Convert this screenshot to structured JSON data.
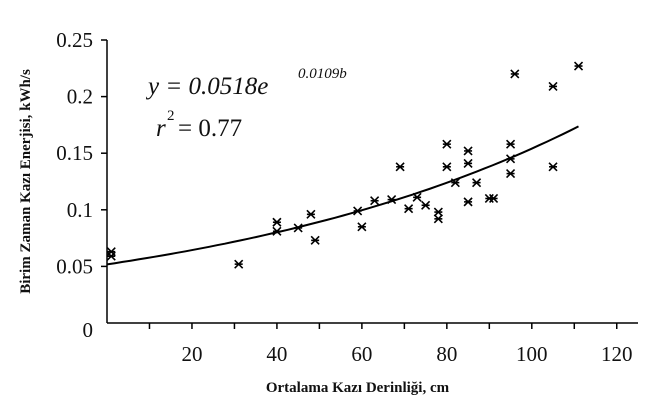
{
  "chart_data": {
    "type": "scatter",
    "title": "",
    "xlabel": "Ortalama Kazı Derinliği, cm",
    "ylabel": "Birim Zaman Kazı Enerjisi, kWh/s",
    "xlim": [
      0,
      125
    ],
    "ylim": [
      0,
      0.25
    ],
    "x_ticks": [
      20,
      40,
      60,
      80,
      100,
      120
    ],
    "x_tick_labels": [
      "20",
      "40",
      "60",
      "80",
      "100",
      "120"
    ],
    "y_ticks": [
      0,
      0.05,
      0.1,
      0.15,
      0.2,
      0.25
    ],
    "y_tick_labels": [
      "0",
      "0.05",
      "0.1",
      "0.15",
      "0.2",
      "0.25"
    ],
    "grid": false,
    "legend": "none",
    "marker": "asterisk",
    "series": [
      {
        "x": [
          1,
          1,
          31,
          40,
          40,
          45,
          48,
          49,
          59,
          60,
          63,
          67,
          69,
          71,
          73,
          75,
          78,
          78,
          80,
          80,
          82,
          85,
          85,
          85,
          87,
          90,
          91,
          95,
          95,
          95,
          96,
          105,
          105,
          111
        ],
        "y": [
          0.063,
          0.059,
          0.052,
          0.089,
          0.081,
          0.084,
          0.096,
          0.073,
          0.099,
          0.085,
          0.108,
          0.109,
          0.138,
          0.101,
          0.111,
          0.104,
          0.098,
          0.092,
          0.158,
          0.138,
          0.124,
          0.152,
          0.141,
          0.107,
          0.124,
          0.11,
          0.11,
          0.158,
          0.145,
          0.132,
          0.22,
          0.209,
          0.138,
          0.227
        ]
      }
    ],
    "fit": {
      "type": "exponential",
      "a": 0.0518,
      "b": 0.0109,
      "x_range": [
        0,
        111
      ]
    },
    "annotations": {
      "equation_lhs": "y = 0.0518e",
      "equation_exp": "0.0109b",
      "r2_lhs": "r",
      "r2_exp": "2",
      "r2_rhs": " = 0.77"
    }
  }
}
